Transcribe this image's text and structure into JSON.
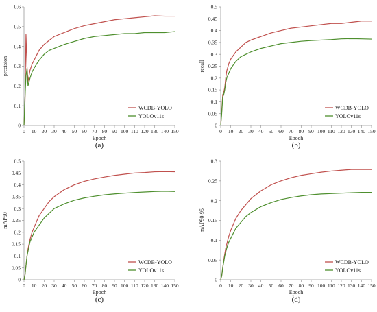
{
  "legend_labels": [
    "WCDB-YOLO",
    "YOLOv11s"
  ],
  "colors": {
    "wcdb": "#c0504d",
    "yolo": "#4e8f2e",
    "axis": "#999999",
    "text": "#222222"
  },
  "chart_data": [
    {
      "type": "line",
      "caption": "(a)",
      "xlabel": "Epoch",
      "ylabel": "precision",
      "xlim": [
        0,
        150
      ],
      "ylim": [
        0,
        0.6
      ],
      "xticks": [
        "0",
        "10",
        "20",
        "30",
        "40",
        "50",
        "60",
        "70",
        "80",
        "90",
        "100",
        "110",
        "120",
        "130",
        "140",
        "150"
      ],
      "yticks": [
        "0",
        "0.1",
        "0.2",
        "0.3",
        "0.4",
        "0.5",
        "0.6"
      ],
      "grid": false,
      "legend_position": "bottom-right",
      "x": [
        0,
        1,
        2,
        3,
        4,
        5,
        6,
        8,
        10,
        15,
        20,
        25,
        30,
        40,
        50,
        60,
        70,
        80,
        90,
        100,
        110,
        120,
        130,
        140,
        150
      ],
      "series": [
        {
          "name": "WCDB-YOLO",
          "color": "#c0504d",
          "values": [
            0.0,
            0.12,
            0.46,
            0.3,
            0.22,
            0.25,
            0.28,
            0.31,
            0.33,
            0.38,
            0.41,
            0.43,
            0.45,
            0.47,
            0.49,
            0.505,
            0.515,
            0.525,
            0.535,
            0.54,
            0.545,
            0.55,
            0.555,
            0.553,
            0.553
          ]
        },
        {
          "name": "YOLOv11s",
          "color": "#4e8f2e",
          "values": [
            0.0,
            0.14,
            0.25,
            0.29,
            0.2,
            0.22,
            0.24,
            0.27,
            0.29,
            0.33,
            0.36,
            0.38,
            0.39,
            0.41,
            0.425,
            0.44,
            0.45,
            0.455,
            0.46,
            0.465,
            0.465,
            0.47,
            0.47,
            0.47,
            0.475
          ]
        }
      ]
    },
    {
      "type": "line",
      "caption": "(b)",
      "xlabel": "Epoch",
      "ylabel": "recall",
      "xlim": [
        0,
        150
      ],
      "ylim": [
        0,
        0.5
      ],
      "xticks": [
        "0",
        "10",
        "20",
        "30",
        "40",
        "50",
        "60",
        "70",
        "80",
        "90",
        "100",
        "110",
        "120",
        "130",
        "140",
        "150"
      ],
      "yticks": [
        "0",
        "0.05",
        "0.1",
        "0.15",
        "0.2",
        "0.25",
        "0.3",
        "0.35",
        "0.4",
        "0.45",
        "0.5"
      ],
      "grid": false,
      "legend_position": "bottom-right",
      "x": [
        0,
        1,
        2,
        3,
        4,
        5,
        6,
        8,
        10,
        15,
        20,
        25,
        30,
        40,
        50,
        60,
        70,
        80,
        90,
        100,
        110,
        120,
        130,
        140,
        150
      ],
      "series": [
        {
          "name": "WCDB-YOLO",
          "color": "#c0504d",
          "values": [
            0.0,
            0.06,
            0.13,
            0.14,
            0.16,
            0.2,
            0.23,
            0.26,
            0.28,
            0.31,
            0.33,
            0.35,
            0.36,
            0.375,
            0.39,
            0.4,
            0.41,
            0.415,
            0.42,
            0.425,
            0.43,
            0.43,
            0.435,
            0.44,
            0.44
          ]
        },
        {
          "name": "YOLOv11s",
          "color": "#4e8f2e",
          "values": [
            0.0,
            0.05,
            0.12,
            0.13,
            0.15,
            0.18,
            0.2,
            0.22,
            0.24,
            0.27,
            0.29,
            0.3,
            0.31,
            0.325,
            0.335,
            0.345,
            0.35,
            0.355,
            0.358,
            0.36,
            0.362,
            0.365,
            0.366,
            0.365,
            0.364
          ]
        }
      ]
    },
    {
      "type": "line",
      "caption": "(c)",
      "xlabel": "Epoch",
      "ylabel": "mAP50",
      "xlim": [
        0,
        150
      ],
      "ylim": [
        0,
        0.5
      ],
      "xticks": [
        "0",
        "10",
        "20",
        "30",
        "40",
        "50",
        "60",
        "70",
        "80",
        "90",
        "100",
        "110",
        "120",
        "130",
        "140",
        "150"
      ],
      "yticks": [
        "0",
        "0.05",
        "0.1",
        "0.15",
        "0.2",
        "0.25",
        "0.3",
        "0.35",
        "0.4",
        "0.45",
        "0.5"
      ],
      "grid": false,
      "legend_position": "bottom-right",
      "x": [
        0,
        1,
        2,
        3,
        4,
        5,
        6,
        8,
        10,
        15,
        20,
        25,
        30,
        40,
        50,
        60,
        70,
        80,
        90,
        100,
        110,
        120,
        130,
        140,
        150
      ],
      "series": [
        {
          "name": "WCDB-YOLO",
          "color": "#c0504d",
          "values": [
            0.0,
            0.02,
            0.06,
            0.1,
            0.13,
            0.15,
            0.17,
            0.2,
            0.22,
            0.27,
            0.3,
            0.33,
            0.35,
            0.38,
            0.4,
            0.415,
            0.425,
            0.433,
            0.44,
            0.445,
            0.45,
            0.452,
            0.455,
            0.456,
            0.455
          ]
        },
        {
          "name": "YOLOv11s",
          "color": "#4e8f2e",
          "values": [
            0.0,
            0.02,
            0.06,
            0.1,
            0.12,
            0.14,
            0.16,
            0.18,
            0.2,
            0.23,
            0.26,
            0.28,
            0.3,
            0.32,
            0.335,
            0.345,
            0.352,
            0.358,
            0.362,
            0.365,
            0.368,
            0.37,
            0.372,
            0.373,
            0.372
          ]
        }
      ]
    },
    {
      "type": "line",
      "caption": "(d)",
      "xlabel": "Epoch",
      "ylabel": "mAP50-95",
      "xlim": [
        0,
        150
      ],
      "ylim": [
        0,
        0.3
      ],
      "xticks": [
        "0",
        "10",
        "20",
        "30",
        "40",
        "50",
        "60",
        "70",
        "80",
        "90",
        "100",
        "110",
        "120",
        "130",
        "140",
        "150"
      ],
      "yticks": [
        "0",
        "0.05",
        "0.1",
        "0.15",
        "0.2",
        "0.25",
        "0.3"
      ],
      "grid": false,
      "legend_position": "bottom-right",
      "x": [
        0,
        1,
        2,
        3,
        4,
        5,
        6,
        8,
        10,
        15,
        20,
        25,
        30,
        40,
        50,
        60,
        70,
        80,
        90,
        100,
        110,
        120,
        130,
        140,
        150
      ],
      "series": [
        {
          "name": "WCDB-YOLO",
          "color": "#c0504d",
          "values": [
            0.0,
            0.01,
            0.03,
            0.05,
            0.065,
            0.08,
            0.09,
            0.11,
            0.125,
            0.155,
            0.175,
            0.19,
            0.205,
            0.225,
            0.24,
            0.25,
            0.258,
            0.264,
            0.268,
            0.272,
            0.275,
            0.277,
            0.279,
            0.279,
            0.279
          ]
        },
        {
          "name": "YOLOv11s",
          "color": "#4e8f2e",
          "values": [
            0.0,
            0.01,
            0.03,
            0.045,
            0.06,
            0.07,
            0.08,
            0.095,
            0.105,
            0.13,
            0.145,
            0.16,
            0.17,
            0.185,
            0.195,
            0.203,
            0.208,
            0.212,
            0.215,
            0.217,
            0.218,
            0.219,
            0.22,
            0.221,
            0.221
          ]
        }
      ]
    }
  ]
}
